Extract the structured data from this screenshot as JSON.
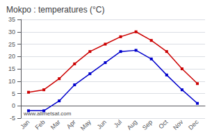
{
  "chart_data": {
    "type": "line",
    "title": "Mokpo : temperatures (°C)",
    "categories": [
      "Jan",
      "Feb",
      "Mar",
      "Apr",
      "May",
      "Jun",
      "Jul",
      "Aug",
      "Sep",
      "Oct",
      "Nov",
      "Dec"
    ],
    "series": [
      {
        "color": "#cc0000",
        "values": [
          5.5,
          6.5,
          11,
          17,
          22,
          25,
          28,
          30,
          26.5,
          22,
          15,
          9
        ]
      },
      {
        "color": "#0000cc",
        "values": [
          -2,
          -2,
          2,
          8.5,
          13,
          17.5,
          22,
          22.5,
          19,
          12.5,
          6.5,
          1
        ]
      }
    ],
    "ylim": [
      -5,
      35
    ],
    "yticks": [
      -5,
      0,
      5,
      10,
      15,
      20,
      25,
      30,
      35
    ],
    "grid": true,
    "marker": "square",
    "annotation": "www.allmetsat.com"
  }
}
